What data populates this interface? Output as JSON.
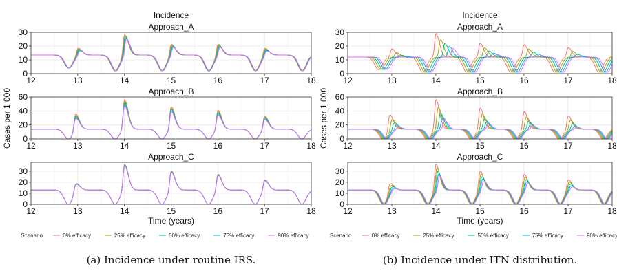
{
  "figures": [
    {
      "title": "Incidence",
      "ylabel": "Cases per 1 000",
      "xlabel": "Time (years)",
      "legend_title": "Scenario",
      "caption": "(a) Incidence under routine IRS."
    },
    {
      "title": "Incidence",
      "ylabel": "Cases per 1 000",
      "xlabel": "Time (years)",
      "legend_title": "Scenario",
      "caption": "(b) Incidence under ITN distribution."
    }
  ],
  "legend": {
    "title": "Scenario",
    "entries": [
      "0% efficacy",
      "25% efficacy",
      "50% efficacy",
      "75% efficacy",
      "90% efficacy"
    ],
    "colors": [
      "#F8766D",
      "#A3A500",
      "#00BF7D",
      "#00B0F6",
      "#E76BF3"
    ]
  },
  "chart_data": [
    {
      "type": "line",
      "figure": "(a) routine IRS",
      "panel": "Approach_A",
      "xlim": [
        12,
        18
      ],
      "ylim": [
        0,
        30
      ],
      "x_ticks": [
        12,
        13,
        14,
        15,
        16,
        17,
        18
      ],
      "y_ticks": [
        0,
        10,
        20,
        30
      ],
      "grid": true,
      "legend_position": "bottom",
      "baseline": 13.5,
      "troughs": [
        [
          12.8,
          4
        ],
        [
          13.8,
          2
        ],
        [
          14.8,
          2
        ],
        [
          15.8,
          2
        ],
        [
          16.8,
          2
        ],
        [
          17.8,
          2
        ]
      ],
      "peaks": [
        [
          13.0,
          19
        ],
        [
          14.0,
          29
        ],
        [
          15.0,
          22
        ],
        [
          16.0,
          22
        ],
        [
          17.0,
          19
        ]
      ],
      "series": [
        {
          "name": "0% efficacy",
          "scale": 1.0,
          "shift": 0.0
        },
        {
          "name": "25% efficacy",
          "scale": 0.97,
          "shift": 0.01
        },
        {
          "name": "50% efficacy",
          "scale": 0.94,
          "shift": 0.02
        },
        {
          "name": "75% efficacy",
          "scale": 0.91,
          "shift": 0.03
        },
        {
          "name": "90% efficacy",
          "scale": 0.88,
          "shift": 0.04
        }
      ]
    },
    {
      "type": "line",
      "figure": "(a) routine IRS",
      "panel": "Approach_B",
      "xlim": [
        12,
        18
      ],
      "ylim": [
        0,
        60
      ],
      "x_ticks": [
        12,
        13,
        14,
        15,
        16,
        17,
        18
      ],
      "y_ticks": [
        0,
        20,
        40,
        60
      ],
      "grid": true,
      "legend_position": "bottom",
      "baseline": 14,
      "troughs": [
        [
          12.8,
          0
        ],
        [
          13.8,
          0
        ],
        [
          14.8,
          0
        ],
        [
          15.8,
          0
        ],
        [
          16.8,
          0
        ],
        [
          17.8,
          0
        ]
      ],
      "peaks": [
        [
          12.95,
          38
        ],
        [
          14.0,
          57
        ],
        [
          15.0,
          47
        ],
        [
          16.0,
          42
        ],
        [
          17.0,
          34
        ]
      ],
      "series": [
        {
          "name": "0% efficacy",
          "scale": 1.0,
          "shift": 0.0
        },
        {
          "name": "25% efficacy",
          "scale": 0.96,
          "shift": 0.0
        },
        {
          "name": "50% efficacy",
          "scale": 0.92,
          "shift": 0.0
        },
        {
          "name": "75% efficacy",
          "scale": 0.88,
          "shift": 0.0
        },
        {
          "name": "90% efficacy",
          "scale": 0.84,
          "shift": 0.0
        }
      ]
    },
    {
      "type": "line",
      "figure": "(a) routine IRS",
      "panel": "Approach_C",
      "xlim": [
        12,
        18
      ],
      "ylim": [
        0,
        38
      ],
      "x_ticks": [
        12,
        13,
        14,
        15,
        16,
        17,
        18
      ],
      "y_ticks": [
        0,
        10,
        20,
        30
      ],
      "grid": true,
      "legend_position": "bottom",
      "baseline": 13,
      "troughs": [
        [
          12.8,
          0
        ],
        [
          13.8,
          0
        ],
        [
          14.8,
          0
        ],
        [
          15.8,
          0
        ],
        [
          16.8,
          0
        ],
        [
          17.8,
          0
        ]
      ],
      "peaks": [
        [
          12.95,
          21
        ],
        [
          14.0,
          37
        ],
        [
          15.0,
          31
        ],
        [
          16.0,
          28
        ],
        [
          17.0,
          23
        ]
      ],
      "series": [
        {
          "name": "0% efficacy",
          "scale": 1.0,
          "shift": 0.0
        },
        {
          "name": "25% efficacy",
          "scale": 0.99,
          "shift": 0.0
        },
        {
          "name": "50% efficacy",
          "scale": 0.98,
          "shift": 0.0
        },
        {
          "name": "75% efficacy",
          "scale": 0.97,
          "shift": 0.0
        },
        {
          "name": "90% efficacy",
          "scale": 0.96,
          "shift": 0.0
        }
      ]
    },
    {
      "type": "line",
      "figure": "(b) ITN distribution",
      "panel": "Approach_A",
      "xlim": [
        12,
        18
      ],
      "ylim": [
        0,
        30
      ],
      "x_ticks": [
        12,
        13,
        14,
        15,
        16,
        17,
        18
      ],
      "y_ticks": [
        0,
        10,
        20,
        30
      ],
      "grid": true,
      "legend_position": "bottom",
      "baseline": 12,
      "troughs": [
        [
          12.7,
          3
        ],
        [
          13.7,
          1
        ],
        [
          14.7,
          1
        ],
        [
          15.7,
          1
        ],
        [
          16.7,
          1
        ],
        [
          17.7,
          1
        ]
      ],
      "peaks": [
        [
          13.0,
          18
        ],
        [
          14.0,
          29
        ],
        [
          15.0,
          22
        ],
        [
          16.0,
          21
        ],
        [
          17.0,
          19
        ]
      ],
      "series": [
        {
          "name": "0% efficacy",
          "scale": 1.0,
          "shift": 0.0
        },
        {
          "name": "25% efficacy",
          "scale": 0.85,
          "shift": 0.1
        },
        {
          "name": "50% efficacy",
          "scale": 0.75,
          "shift": 0.2
        },
        {
          "name": "75% efficacy",
          "scale": 0.68,
          "shift": 0.3
        },
        {
          "name": "90% efficacy",
          "scale": 0.63,
          "shift": 0.38
        }
      ]
    },
    {
      "type": "line",
      "figure": "(b) ITN distribution",
      "panel": "Approach_B",
      "xlim": [
        12,
        18
      ],
      "ylim": [
        0,
        60
      ],
      "x_ticks": [
        12,
        13,
        14,
        15,
        16,
        17,
        18
      ],
      "y_ticks": [
        0,
        20,
        40,
        60
      ],
      "grid": true,
      "legend_position": "bottom",
      "baseline": 14,
      "troughs": [
        [
          12.8,
          0
        ],
        [
          13.8,
          0
        ],
        [
          14.8,
          0
        ],
        [
          15.8,
          0
        ],
        [
          16.8,
          0
        ],
        [
          17.8,
          0
        ]
      ],
      "peaks": [
        [
          12.95,
          37
        ],
        [
          14.0,
          57
        ],
        [
          15.0,
          45
        ],
        [
          16.0,
          40
        ],
        [
          17.0,
          34
        ]
      ],
      "series": [
        {
          "name": "0% efficacy",
          "scale": 1.0,
          "shift": 0.0
        },
        {
          "name": "25% efficacy",
          "scale": 0.8,
          "shift": 0.05
        },
        {
          "name": "50% efficacy",
          "scale": 0.65,
          "shift": 0.1
        },
        {
          "name": "75% efficacy",
          "scale": 0.55,
          "shift": 0.15
        },
        {
          "name": "90% efficacy",
          "scale": 0.48,
          "shift": 0.19
        }
      ]
    },
    {
      "type": "line",
      "figure": "(b) ITN distribution",
      "panel": "Approach_C",
      "xlim": [
        12,
        18
      ],
      "ylim": [
        0,
        38
      ],
      "x_ticks": [
        12,
        13,
        14,
        15,
        16,
        17,
        18
      ],
      "y_ticks": [
        0,
        10,
        20,
        30
      ],
      "grid": true,
      "legend_position": "bottom",
      "baseline": 13,
      "troughs": [
        [
          12.8,
          0
        ],
        [
          13.8,
          0
        ],
        [
          14.8,
          0
        ],
        [
          15.8,
          0
        ],
        [
          16.8,
          0
        ],
        [
          17.8,
          0
        ]
      ],
      "peaks": [
        [
          12.95,
          21
        ],
        [
          14.0,
          37
        ],
        [
          15.0,
          31
        ],
        [
          16.0,
          28
        ],
        [
          17.0,
          23
        ]
      ],
      "series": [
        {
          "name": "0% efficacy",
          "scale": 1.0,
          "shift": 0.0
        },
        {
          "name": "25% efficacy",
          "scale": 0.9,
          "shift": 0.02
        },
        {
          "name": "50% efficacy",
          "scale": 0.82,
          "shift": 0.04
        },
        {
          "name": "75% efficacy",
          "scale": 0.75,
          "shift": 0.06
        },
        {
          "name": "90% efficacy",
          "scale": 0.7,
          "shift": 0.08
        }
      ]
    }
  ]
}
